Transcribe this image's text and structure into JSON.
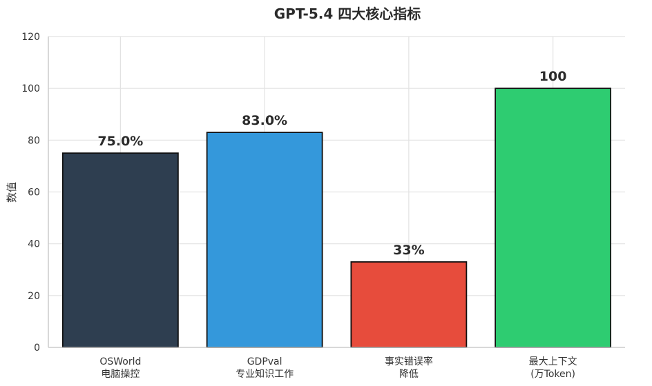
{
  "chart_data": {
    "type": "bar",
    "title": "GPT-5.4 四大核心指标",
    "ylabel": "数值",
    "xlabel": "",
    "ylim": [
      0,
      120
    ],
    "yticks": [
      0,
      20,
      40,
      60,
      80,
      100,
      120
    ],
    "grid": true,
    "categories": [
      [
        "OSWorld",
        "电脑操控"
      ],
      [
        "GDPval",
        "专业知识工作"
      ],
      [
        "事实错误率",
        "降低"
      ],
      [
        "最大上下文",
        "(万Token)"
      ]
    ],
    "values": [
      75,
      83,
      33,
      100
    ],
    "value_labels": [
      "75.0%",
      "83.0%",
      "33%",
      "100"
    ],
    "colors": [
      "#2e3e50",
      "#3498db",
      "#e74c3c",
      "#2ecc71"
    ]
  }
}
